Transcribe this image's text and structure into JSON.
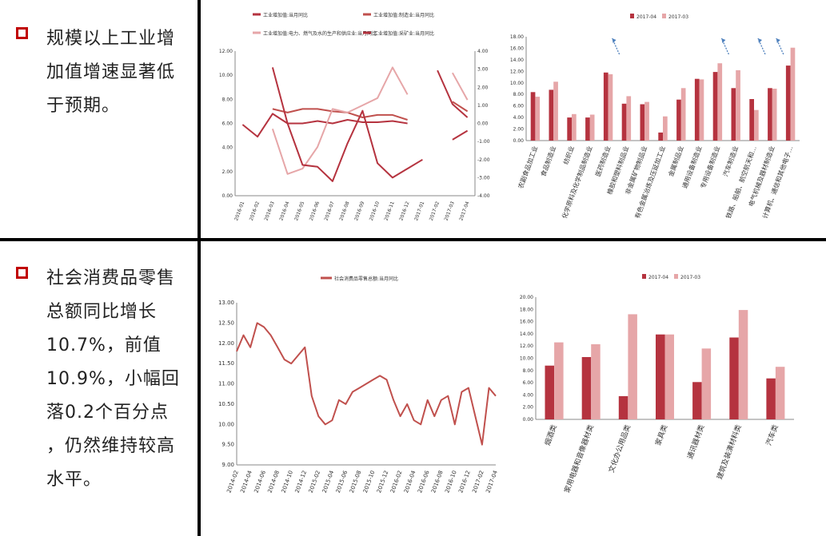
{
  "sections": [
    {
      "bullet_text": "规模以上工业增\n加值增速显著低\n于预期。"
    },
    {
      "bullet_text": "社会消费品零售\n总额同比增长\n10.7%，前值\n10.9%，小幅回\n落0.2个百分点\n，仍然维持较高\n水平。"
    }
  ],
  "colors": {
    "dark_red": "#b5333f",
    "mid_red": "#c0504d",
    "light_pink": "#e6a6a8",
    "bullet_red": "#c00000"
  },
  "chart_data": [
    {
      "type": "line",
      "x": [
        "2016-01",
        "2016-02",
        "2016-03",
        "2016-04",
        "2016-05",
        "2016-06",
        "2016-07",
        "2016-08",
        "2016-09",
        "2016-10",
        "2016-11",
        "2016-12",
        "2017-01",
        "2017-02",
        "2017-03",
        "2017-04"
      ],
      "ylim": [
        0,
        12
      ],
      "yticks": [
        "0.00",
        "2.00",
        "4.00",
        "6.00",
        "8.00",
        "10.00",
        "12.00"
      ],
      "y2lim": [
        -4,
        4
      ],
      "y2ticks": [
        "-4.00",
        "-3.00",
        "-2.00",
        "-1.00",
        "0.00",
        "1.00",
        "2.00",
        "3.00",
        "4.00"
      ],
      "series": [
        {
          "name": "工业增加值:当月同比",
          "axis": "left",
          "color": "#b5333f",
          "values": [
            5.9,
            4.9,
            6.8,
            6.0,
            6.0,
            6.2,
            6.0,
            6.3,
            6.1,
            6.1,
            6.2,
            6.0,
            null,
            10.4,
            7.6,
            6.5
          ]
        },
        {
          "name": "工业增加值:制造业:当月同比",
          "axis": "left",
          "color": "#c0504d",
          "values": [
            null,
            null,
            7.2,
            6.9,
            7.2,
            7.2,
            7.0,
            6.9,
            6.5,
            6.7,
            6.7,
            6.3,
            null,
            null,
            7.8,
            7.0
          ]
        },
        {
          "name": "工业增加值:电力、燃气及水的生产和供应业:当月同比",
          "axis": "right",
          "color": "#e6a6a8",
          "values": [
            null,
            null,
            -0.3,
            -2.8,
            -2.5,
            -1.3,
            0.8,
            0.6,
            1.0,
            1.4,
            3.1,
            1.6,
            null,
            null,
            2.8,
            1.3
          ]
        },
        {
          "name": "工业增加值:采矿业:当月同比",
          "axis": "right",
          "color": "#b5333f",
          "values": [
            null,
            null,
            3.1,
            0.0,
            -2.3,
            -2.4,
            -3.2,
            -1.1,
            0.7,
            -2.2,
            -3.0,
            -2.5,
            -2.0,
            null,
            -0.9,
            -0.4
          ]
        }
      ]
    },
    {
      "type": "bar",
      "categories": [
        "农副食品加工业",
        "食品制造业",
        "纺织业",
        "化学原料及化学制品制造业",
        "医药制造业",
        "橡胶和塑料制品业",
        "非金属矿物制品业",
        "有色金属冶炼及压延加工业",
        "金属制品业",
        "通用设备制造业",
        "专用设备制造业",
        "汽车制造业",
        "铁路、船舶、航空航天和…",
        "电气机械及器材制造业",
        "计算机、通信和其他电子…"
      ],
      "ylim": [
        0,
        18
      ],
      "yticks": [
        "0.00",
        "2.00",
        "4.00",
        "6.00",
        "8.00",
        "10.00",
        "12.00",
        "14.00",
        "16.00",
        "18.00"
      ],
      "series": [
        {
          "name": "2017-04",
          "color": "#b5333f",
          "values": [
            8.4,
            8.8,
            4.0,
            4.0,
            11.8,
            6.4,
            6.3,
            1.4,
            7.1,
            10.7,
            11.9,
            9.1,
            7.2,
            9.1,
            13.0
          ]
        },
        {
          "name": "2017-03",
          "color": "#e6a6a8",
          "values": [
            7.6,
            10.2,
            4.6,
            4.5,
            11.5,
            7.7,
            6.7,
            4.2,
            9.1,
            10.6,
            13.4,
            12.2,
            5.3,
            9.0,
            16.1
          ]
        }
      ],
      "annotation": "arrow markers above 医药制造业, 专用设备制造业, 铁路、船舶、航空航天和…, 电气机械及器材制造业"
    },
    {
      "type": "line",
      "x": [
        "2014-02",
        "2014-03",
        "2014-04",
        "2014-05",
        "2014-06",
        "2014-07",
        "2014-08",
        "2014-09",
        "2014-10",
        "2014-11",
        "2014-12",
        "2015-01",
        "2015-02",
        "2015-03",
        "2015-04",
        "2015-05",
        "2015-06",
        "2015-07",
        "2015-08",
        "2015-09",
        "2015-10",
        "2015-11",
        "2015-12",
        "2016-01",
        "2016-02",
        "2016-03",
        "2016-04",
        "2016-05",
        "2016-06",
        "2016-07",
        "2016-08",
        "2016-09",
        "2016-10",
        "2016-11",
        "2016-12",
        "2017-01",
        "2017-02",
        "2017-03",
        "2017-04"
      ],
      "xticks": [
        "2014-02",
        "2014-04",
        "2014-06",
        "2014-08",
        "2014-10",
        "2014-12",
        "2015-02",
        "2015-04",
        "2015-06",
        "2015-08",
        "2015-10",
        "2015-12",
        "2016-02",
        "2016-04",
        "2016-06",
        "2016-08",
        "2016-10",
        "2016-12",
        "2017-02",
        "2017-04"
      ],
      "ylim": [
        9.0,
        13.0
      ],
      "yticks": [
        "9.00",
        "9.50",
        "10.00",
        "10.50",
        "11.00",
        "11.50",
        "12.00",
        "12.50",
        "13.00"
      ],
      "series": [
        {
          "name": "社会消费品零售总额:当月同比",
          "color": "#c0504d",
          "values": [
            11.8,
            12.2,
            11.9,
            12.5,
            12.4,
            12.2,
            11.9,
            11.6,
            11.5,
            11.7,
            11.9,
            10.7,
            10.2,
            10.0,
            10.1,
            10.6,
            10.5,
            10.8,
            10.9,
            11.0,
            11.1,
            11.2,
            11.1,
            10.6,
            10.2,
            10.5,
            10.1,
            10.0,
            10.6,
            10.2,
            10.6,
            10.7,
            10.0,
            10.8,
            10.9,
            10.2,
            9.5,
            10.9,
            10.7
          ]
        }
      ]
    },
    {
      "type": "bar",
      "categories": [
        "烟酒类",
        "家用电器和音像器材类",
        "文化办公用品类",
        "家具类",
        "通讯器材类",
        "建筑及装潢材料类",
        "汽车类"
      ],
      "ylim": [
        0,
        20
      ],
      "yticks": [
        "0.00",
        "2.00",
        "4.00",
        "6.00",
        "8.00",
        "10.00",
        "12.00",
        "14.00",
        "16.00",
        "18.00",
        "20.00"
      ],
      "series": [
        {
          "name": "2017-04",
          "color": "#b5333f",
          "values": [
            8.8,
            10.2,
            3.8,
            13.9,
            6.1,
            13.4,
            6.7
          ]
        },
        {
          "name": "2017-03",
          "color": "#e6a6a8",
          "values": [
            12.6,
            12.3,
            17.2,
            13.9,
            11.6,
            17.9,
            8.6
          ]
        }
      ]
    }
  ]
}
